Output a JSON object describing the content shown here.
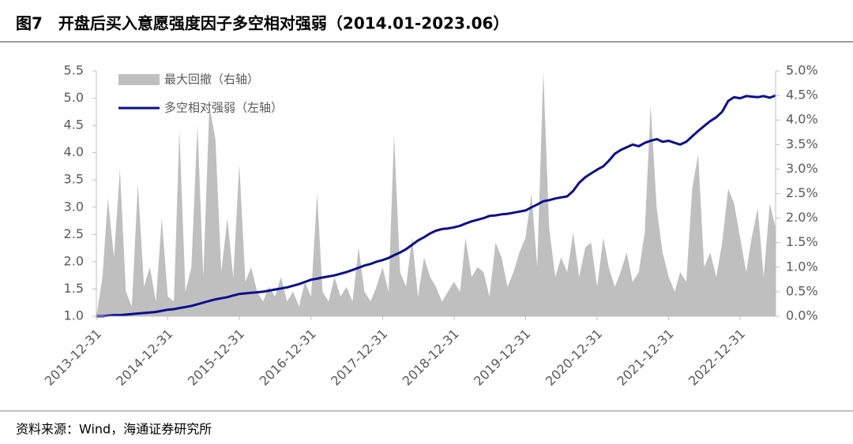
{
  "chart_data": {
    "type": "line",
    "title": "图7　开盘后买入意愿强度因子多空相对强弱（2014.01-2023.06）",
    "source": "资料来源：Wind，海通证券研究所",
    "x": [
      "2013-12-31",
      "2014-01-31",
      "2014-02-28",
      "2014-03-31",
      "2014-04-30",
      "2014-05-31",
      "2014-06-30",
      "2014-07-31",
      "2014-08-31",
      "2014-09-30",
      "2014-10-31",
      "2014-11-30",
      "2014-12-31",
      "2015-01-31",
      "2015-02-28",
      "2015-03-31",
      "2015-04-30",
      "2015-05-31",
      "2015-06-30",
      "2015-07-31",
      "2015-08-31",
      "2015-09-30",
      "2015-10-31",
      "2015-11-30",
      "2015-12-31",
      "2016-01-31",
      "2016-02-29",
      "2016-03-31",
      "2016-04-30",
      "2016-05-31",
      "2016-06-30",
      "2016-07-31",
      "2016-08-31",
      "2016-09-30",
      "2016-10-31",
      "2016-11-30",
      "2016-12-31",
      "2017-01-31",
      "2017-02-28",
      "2017-03-31",
      "2017-04-30",
      "2017-05-31",
      "2017-06-30",
      "2017-07-31",
      "2017-08-31",
      "2017-09-30",
      "2017-10-31",
      "2017-11-30",
      "2017-12-31",
      "2018-01-31",
      "2018-02-28",
      "2018-03-31",
      "2018-04-30",
      "2018-05-31",
      "2018-06-30",
      "2018-07-31",
      "2018-08-31",
      "2018-09-30",
      "2018-10-31",
      "2018-11-30",
      "2018-12-31",
      "2019-01-31",
      "2019-02-28",
      "2019-03-31",
      "2019-04-30",
      "2019-05-31",
      "2019-06-30",
      "2019-07-31",
      "2019-08-31",
      "2019-09-30",
      "2019-10-31",
      "2019-11-30",
      "2019-12-31",
      "2020-01-31",
      "2020-02-29",
      "2020-03-31",
      "2020-04-30",
      "2020-05-31",
      "2020-06-30",
      "2020-07-31",
      "2020-08-31",
      "2020-09-30",
      "2020-10-31",
      "2020-11-30",
      "2020-12-31",
      "2021-01-31",
      "2021-02-28",
      "2021-03-31",
      "2021-04-30",
      "2021-05-31",
      "2021-06-30",
      "2021-07-31",
      "2021-08-31",
      "2021-09-30",
      "2021-10-31",
      "2021-11-30",
      "2021-12-31",
      "2022-01-31",
      "2022-02-28",
      "2022-03-31",
      "2022-04-30",
      "2022-05-31",
      "2022-06-30",
      "2022-07-31",
      "2022-08-31",
      "2022-09-30",
      "2022-10-31",
      "2022-11-30",
      "2022-12-31",
      "2023-01-31",
      "2023-02-28",
      "2023-03-31",
      "2023-04-30",
      "2023-05-31",
      "2023-06-30"
    ],
    "series": [
      {
        "name": "最大回撤（右轴）",
        "color": "#bfbfbf",
        "axis": "y2",
        "kind": "area",
        "values": [
          0,
          0.8,
          2.4,
          1.2,
          3.0,
          0.5,
          0.2,
          2.7,
          0.6,
          1.0,
          0.3,
          2.0,
          0.4,
          0.3,
          3.8,
          0.5,
          1.0,
          3.9,
          0.8,
          4.3,
          3.6,
          0.9,
          2.0,
          0.8,
          3.1,
          0.7,
          1.0,
          0.5,
          0.3,
          0.6,
          0.4,
          0.8,
          0.3,
          0.5,
          0.2,
          0.7,
          0.4,
          2.5,
          0.5,
          0.3,
          0.8,
          0.4,
          0.6,
          0.3,
          1.4,
          0.5,
          0.3,
          0.6,
          1.0,
          0.5,
          3.7,
          0.9,
          0.6,
          1.6,
          0.4,
          1.2,
          0.8,
          0.6,
          0.3,
          0.5,
          0.7,
          0.5,
          1.6,
          0.8,
          1.0,
          0.9,
          0.4,
          1.5,
          1.2,
          0.6,
          0.9,
          1.3,
          1.6,
          2.5,
          1.0,
          5.0,
          1.8,
          0.8,
          1.2,
          0.9,
          1.7,
          0.8,
          1.4,
          1.5,
          0.6,
          1.6,
          1.0,
          0.6,
          0.9,
          1.3,
          0.7,
          0.9,
          1.7,
          4.3,
          2.2,
          1.3,
          0.8,
          0.5,
          0.9,
          0.7,
          2.6,
          3.3,
          1.0,
          1.3,
          0.8,
          1.5,
          2.6,
          2.3,
          1.6,
          0.9,
          1.6,
          2.2,
          0.8,
          2.3,
          1.8
        ]
      },
      {
        "name": "多空相对强弱（左轴）",
        "color": "#0d0d8c",
        "axis": "y",
        "kind": "line",
        "values": [
          1.0,
          1.0,
          1.01,
          1.02,
          1.02,
          1.03,
          1.04,
          1.05,
          1.06,
          1.07,
          1.08,
          1.1,
          1.12,
          1.13,
          1.15,
          1.17,
          1.19,
          1.22,
          1.25,
          1.28,
          1.31,
          1.33,
          1.35,
          1.38,
          1.41,
          1.42,
          1.43,
          1.44,
          1.45,
          1.47,
          1.49,
          1.51,
          1.53,
          1.56,
          1.59,
          1.63,
          1.67,
          1.69,
          1.71,
          1.73,
          1.75,
          1.78,
          1.81,
          1.85,
          1.89,
          1.93,
          1.96,
          2.0,
          2.03,
          2.07,
          2.12,
          2.17,
          2.23,
          2.31,
          2.39,
          2.45,
          2.52,
          2.57,
          2.6,
          2.61,
          2.63,
          2.66,
          2.7,
          2.74,
          2.77,
          2.8,
          2.84,
          2.85,
          2.87,
          2.88,
          2.9,
          2.92,
          2.94,
          3.0,
          3.05,
          3.11,
          3.13,
          3.16,
          3.18,
          3.2,
          3.3,
          3.45,
          3.55,
          3.62,
          3.69,
          3.75,
          3.85,
          3.98,
          4.05,
          4.1,
          4.15,
          4.12,
          4.18,
          4.22,
          4.25,
          4.2,
          4.22,
          4.18,
          4.15,
          4.2,
          4.3,
          4.4,
          4.49,
          4.58,
          4.65,
          4.75,
          4.95,
          5.02,
          5.0,
          5.04,
          5.03,
          5.02,
          5.04,
          5.01,
          5.05
        ]
      }
    ],
    "xlim": [
      "2013-12-31",
      "2023-06-30"
    ],
    "xticks": [
      "2013-12-31",
      "2014-12-31",
      "2015-12-31",
      "2016-12-31",
      "2017-12-31",
      "2018-12-31",
      "2019-12-31",
      "2020-12-31",
      "2021-12-31",
      "2022-12-31"
    ],
    "ylim": [
      1,
      5.5
    ],
    "yticks": [
      {
        "value": 1,
        "label": "1.0"
      },
      1.5,
      {
        "value": 2,
        "label": "2.0"
      },
      2.5,
      {
        "value": 3,
        "label": "3.0"
      },
      3.5,
      {
        "value": 4,
        "label": "4.0"
      },
      4.5,
      {
        "value": 5,
        "label": "5.0"
      },
      5.5
    ],
    "y2lim": [
      0,
      5
    ],
    "y2ticks": [
      {
        "value": 0,
        "label": "0.0%"
      },
      {
        "value": 0.5,
        "label": "0.5%"
      },
      {
        "value": 1,
        "label": "1.0%"
      },
      {
        "value": 1.5,
        "label": "1.5%"
      },
      {
        "value": 2,
        "label": "2.0%"
      },
      {
        "value": 2.5,
        "label": "2.5%"
      },
      {
        "value": 3,
        "label": "3.0%"
      },
      {
        "value": 3.5,
        "label": "3.5%"
      },
      {
        "value": 4,
        "label": "4.0%"
      },
      {
        "value": 4.5,
        "label": "4.5%"
      },
      {
        "value": 5,
        "label": "5.0%"
      }
    ],
    "legend": "top-left"
  }
}
